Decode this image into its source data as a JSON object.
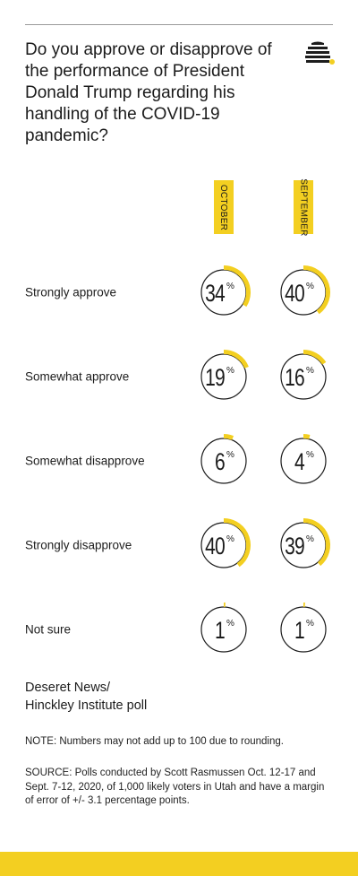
{
  "title": "Do you approve or disapprove of the performance of President Donald Trump regarding his handling of the COVID-19 pandemic?",
  "logo": {
    "icon": "beehive-icon",
    "accent": "#f3cf21"
  },
  "colors": {
    "accent": "#f3cf21",
    "ring": "#1c1c1c",
    "text": "#1c1c1c"
  },
  "chart_data": {
    "type": "radial-dial",
    "title": "Do you approve or disapprove of the performance of President Donald Trump regarding his handling of the COVID-19 pandemic?",
    "series": [
      {
        "name": "OCTOBER",
        "values": [
          34,
          19,
          6,
          40,
          1
        ]
      },
      {
        "name": "SEPTEMBER",
        "values": [
          40,
          16,
          4,
          39,
          1
        ]
      }
    ],
    "categories": [
      "Strongly approve",
      "Somewhat approve",
      "Somewhat disapprove",
      "Strongly disapprove",
      "Not sure"
    ],
    "unit": "%",
    "max": 100
  },
  "source_name": {
    "line1": "Deseret News/",
    "line2": "Hinckley Institute poll"
  },
  "note": "NOTE: Numbers may not add up to 100 due to rounding.",
  "source": "SOURCE: Polls conducted by Scott Rasmussen Oct. 12-17 and Sept. 7-12, 2020, of 1,000 likely voters in Utah and have a margin of error of +/- 3.1 percentage points."
}
